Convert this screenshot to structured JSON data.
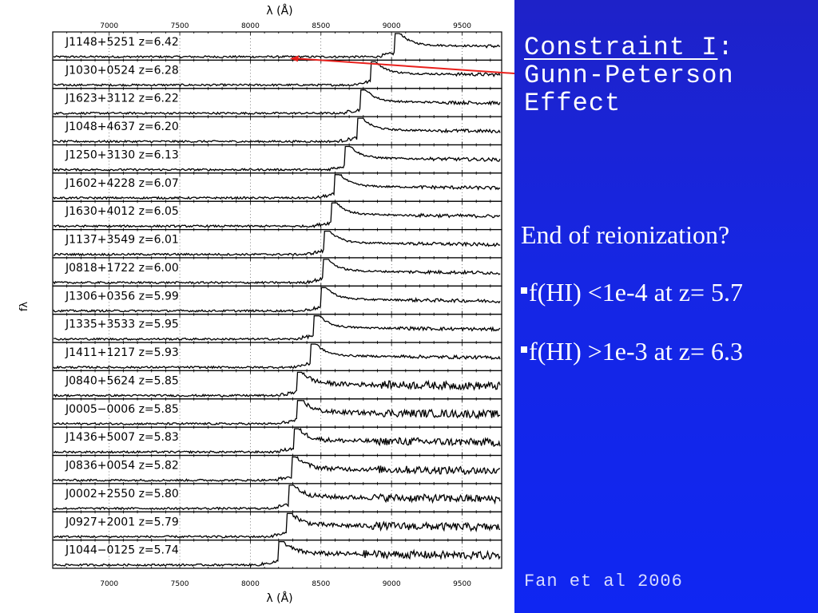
{
  "slide": {
    "title_underlined": "Constraint I",
    "title_rest": ":",
    "title_line2": "Gunn-Peterson",
    "title_line3": "Effect",
    "bullets": {
      "heading": "End of reionization?",
      "items": [
        "f(HI) <1e-4 at z= 5.7",
        "f(HI) >1e-3 at z= 6.3"
      ]
    },
    "citation": "Fan et al 2006"
  },
  "colors": {
    "background": "#1626e4",
    "arrow": "#e8201c",
    "text": "#ffffff"
  },
  "chart_data": {
    "type": "line",
    "title": "",
    "xlabel": "λ (Å)",
    "ylabel": "fλ",
    "xlim": [
      6600,
      9780
    ],
    "x_ticks": [
      7000,
      7500,
      8000,
      8500,
      9000,
      9500
    ],
    "grid": true,
    "annotation": "arrow from 'Constraint I' pointing to the J1148+5251 Gunn-Peterson trough",
    "series": [
      {
        "name": "J1148+5251 z=6.42",
        "z": 6.42
      },
      {
        "name": "J1030+0524 z=6.28",
        "z": 6.28
      },
      {
        "name": "J1623+3112 z=6.22",
        "z": 6.22
      },
      {
        "name": "J1048+4637 z=6.20",
        "z": 6.2
      },
      {
        "name": "J1250+3130 z=6.13",
        "z": 6.13
      },
      {
        "name": "J1602+4228 z=6.07",
        "z": 6.07
      },
      {
        "name": "J1630+4012 z=6.05",
        "z": 6.05
      },
      {
        "name": "J1137+3549 z=6.01",
        "z": 6.01
      },
      {
        "name": "J0818+1722 z=6.00",
        "z": 6.0
      },
      {
        "name": "J1306+0356 z=5.99",
        "z": 5.99
      },
      {
        "name": "J1335+3533 z=5.95",
        "z": 5.95
      },
      {
        "name": "J1411+1217 z=5.93",
        "z": 5.93
      },
      {
        "name": "J0840+5624 z=5.85",
        "z": 5.85
      },
      {
        "name": "J0005−0006 z=5.85",
        "z": 5.85
      },
      {
        "name": "J1436+5007 z=5.83",
        "z": 5.83
      },
      {
        "name": "J0836+0054 z=5.82",
        "z": 5.82
      },
      {
        "name": "J0002+2550 z=5.80",
        "z": 5.8
      },
      {
        "name": "J0927+2001 z=5.79",
        "z": 5.79
      },
      {
        "name": "J1044−0125 z=5.74",
        "z": 5.74
      }
    ]
  }
}
